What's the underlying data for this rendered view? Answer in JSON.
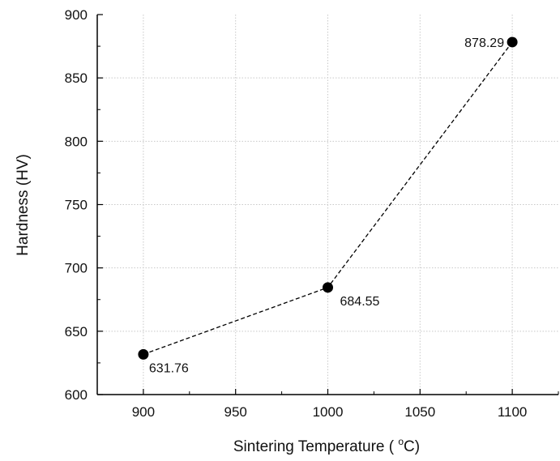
{
  "chart_data": {
    "type": "scatter",
    "x": [
      900,
      1000,
      1100
    ],
    "y": [
      631.76,
      684.55,
      878.29
    ],
    "data_labels": [
      "631.76",
      "684.55",
      "878.29"
    ],
    "xlabel_parts": [
      "Sintering Temperature ( ",
      "o",
      "C)"
    ],
    "ylabel": "Hardness (HV)",
    "xlim": [
      875,
      1125
    ],
    "ylim": [
      600,
      900
    ],
    "xticks": [
      "900",
      "950",
      "1000",
      "1050",
      "1100"
    ],
    "yticks": [
      "600",
      "650",
      "700",
      "750",
      "800",
      "850",
      "900"
    ],
    "grid": true,
    "line_style": "dashed",
    "marker": "filled-circle",
    "colors": {
      "marker": "#000000",
      "line": "#000000",
      "grid": "#c8c8c8"
    }
  }
}
